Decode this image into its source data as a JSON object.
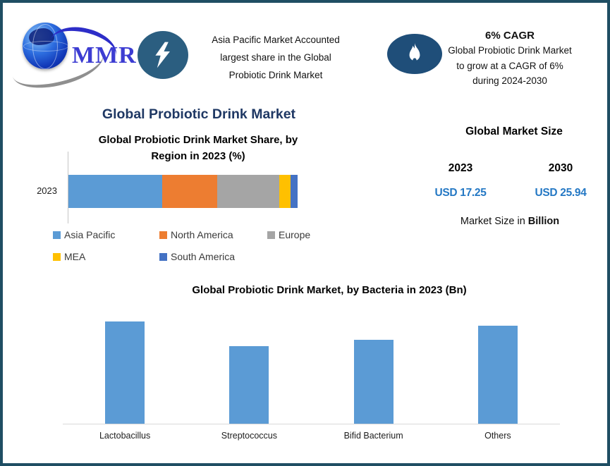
{
  "header": {
    "logo": {
      "text": "MMR"
    },
    "highlight_share": {
      "icon": "lightning-icon",
      "lines": [
        "Asia Pacific Market Accounted",
        "largest share in the Global",
        "Probiotic Drink Market"
      ]
    },
    "highlight_cagr": {
      "icon": "flame-icon",
      "title": "6% CAGR",
      "lines": [
        "Global Probiotic Drink Market",
        "to grow at a CAGR of 6%",
        "during 2024-2030"
      ]
    }
  },
  "main_title": "Global Probiotic Drink Market",
  "market_size": {
    "title": "Global Market Size",
    "columns": [
      {
        "year": "2023",
        "value": "USD 17.25"
      },
      {
        "year": "2030",
        "value": "USD 25.94"
      }
    ],
    "note_prefix": "Market Size in ",
    "note_bold": "Billion",
    "value_color": "#2478c4"
  },
  "colors": {
    "page_border": "#1f4e63",
    "navy_title": "#1f3864",
    "badge_lightning_bg": "#2b5e80",
    "badge_flame_bg": "#1f4e79"
  },
  "chart_data": [
    {
      "type": "bar",
      "orientation": "horizontal-stacked",
      "title": "Global Probiotic Drink Market Share, by Region in 2023 (%)",
      "categories": [
        "2023"
      ],
      "series": [
        {
          "name": "Asia Pacific",
          "color": "#5B9BD5",
          "values": [
            41
          ]
        },
        {
          "name": "North America",
          "color": "#ED7D31",
          "values": [
            24
          ]
        },
        {
          "name": "Europe",
          "color": "#A5A5A5",
          "values": [
            27
          ]
        },
        {
          "name": "MEA",
          "color": "#FFC000",
          "values": [
            5
          ]
        },
        {
          "name": "South America",
          "color": "#4472C4",
          "values": [
            3
          ]
        }
      ],
      "xlim": [
        0,
        100
      ],
      "unit": "%",
      "grid": false,
      "legend_position": "bottom",
      "note": "segment percentages estimated from bar segment widths; no data labels shown"
    },
    {
      "type": "bar",
      "title": "Global Probiotic Drink Market, by Bacteria  in 2023 (Bn)",
      "categories": [
        "Lactobacillus",
        "Streptococcus",
        "Bifid Bacterium",
        "Others"
      ],
      "values": [
        4.9,
        3.7,
        4.0,
        4.7
      ],
      "bar_color": "#5B9BD5",
      "xlabel": "",
      "ylabel": "",
      "ylim": [
        0,
        5.4
      ],
      "grid": false,
      "legend_position": "none",
      "note": "no value axis shown; values estimated from relative bar heights"
    }
  ]
}
